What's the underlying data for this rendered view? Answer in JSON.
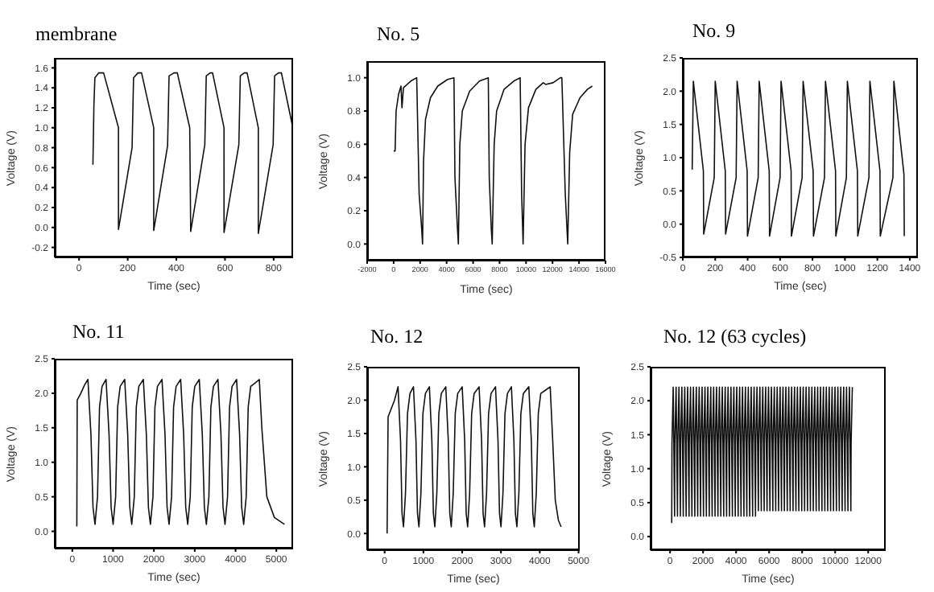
{
  "chart_data": [
    {
      "type": "line",
      "title": "membrane",
      "xlabel": "Time (sec)",
      "ylabel": "Voltage (V)",
      "xlim": [
        -100,
        880
      ],
      "ylim": [
        -0.3,
        1.7
      ],
      "xticks": [
        0,
        200,
        400,
        600,
        800
      ],
      "yticks": [
        -0.2,
        {
          "value": 0,
          "label": "0.0"
        },
        0.2,
        0.4,
        0.6,
        0.8,
        {
          "value": 1,
          "label": "1.0"
        },
        1.2,
        1.4,
        1.6
      ],
      "series": [
        {
          "color": "#111111",
          "x": [
            57,
            61,
            65,
            81,
            101,
            162,
            162,
            218,
            224,
            242,
            257,
            307,
            307,
            364,
            370,
            390,
            404,
            455,
            459,
            517,
            523,
            539,
            549,
            596,
            596,
            657,
            663,
            679,
            691,
            737,
            737,
            798,
            804,
            820,
            832,
            879
          ],
          "values": [
            0.63,
            1.22,
            1.5,
            1.55,
            1.55,
            1.0,
            -0.02,
            0.8,
            1.5,
            1.55,
            1.55,
            1.0,
            -0.03,
            0.82,
            1.52,
            1.55,
            1.55,
            1.0,
            -0.04,
            0.83,
            1.52,
            1.55,
            1.55,
            1.0,
            -0.05,
            0.83,
            1.52,
            1.55,
            1.55,
            1.0,
            -0.06,
            0.83,
            1.52,
            1.55,
            1.55,
            1.0
          ]
        }
      ]
    },
    {
      "type": "line",
      "title": "No. 5",
      "xlabel": "Time (sec)",
      "ylabel": "Voltage (V)",
      "xlim": [
        -2000,
        16000
      ],
      "ylim": [
        -0.1,
        1.1
      ],
      "xticks": [
        -2000,
        0,
        2000,
        4000,
        6000,
        8000,
        10000,
        12000,
        14000,
        16000
      ],
      "yticks": [
        {
          "value": 0,
          "label": "0.0"
        },
        0.2,
        0.4,
        0.6,
        0.8,
        {
          "value": 1,
          "label": "1.0"
        }
      ],
      "series": [
        {
          "color": "#111111",
          "x": [
            0,
            111,
            185,
            370,
            556,
            630,
            741,
            1296,
            1741,
            1926,
            2111,
            2185,
            2259,
            2407,
            2778,
            3333,
            4074,
            4556,
            4630,
            4815,
            4889,
            5000,
            5185,
            5741,
            6481,
            7148,
            7222,
            7370,
            7444,
            7593,
            7778,
            8333,
            9074,
            9556,
            9667,
            9778,
            9926,
            10185,
            10741,
            11296,
            11481,
            12037,
            12593,
            12704,
            12963,
            13148,
            13296,
            13519,
            14074,
            14630,
            15000
          ],
          "values": [
            0.56,
            0.56,
            0.8,
            0.9,
            0.95,
            0.82,
            0.94,
            0.98,
            1.0,
            0.3,
            0.1,
            0.0,
            0.5,
            0.75,
            0.88,
            0.95,
            0.99,
            1.0,
            0.4,
            0.1,
            0.0,
            0.6,
            0.8,
            0.92,
            0.98,
            1.0,
            0.4,
            0.1,
            0.0,
            0.6,
            0.8,
            0.93,
            0.98,
            1.0,
            0.3,
            0.0,
            0.6,
            0.82,
            0.93,
            0.97,
            0.96,
            0.97,
            1.0,
            1.0,
            0.3,
            0.0,
            0.55,
            0.78,
            0.88,
            0.93,
            0.95
          ]
        }
      ]
    },
    {
      "type": "line",
      "title": "No. 9",
      "xlabel": "Time (sec)",
      "ylabel": "Voltage (V)",
      "xlim": [
        0,
        1450
      ],
      "ylim": [
        -0.5,
        2.5
      ],
      "xticks": [
        0,
        200,
        400,
        600,
        800,
        1000,
        1200,
        1400
      ],
      "yticks": [
        -0.5,
        {
          "value": 0,
          "label": "0.0"
        },
        0.5,
        {
          "value": 1,
          "label": "1.0"
        },
        1.5,
        {
          "value": 2,
          "label": "2.0"
        },
        2.5
      ],
      "series": [
        {
          "color": "#111111",
          "x": [
            58,
            65,
            127,
            129,
            194,
            200,
            262,
            264,
            329,
            335,
            397,
            399,
            465,
            471,
            533,
            535,
            600,
            606,
            668,
            670,
            736,
            742,
            804,
            806,
            874,
            880,
            942,
            944,
            1009,
            1015,
            1077,
            1079,
            1148,
            1154,
            1216,
            1218,
            1296,
            1302,
            1364,
            1366
          ],
          "values": [
            0.82,
            2.15,
            0.8,
            -0.15,
            0.7,
            2.15,
            0.8,
            -0.15,
            0.7,
            2.15,
            0.8,
            -0.18,
            0.7,
            2.15,
            0.8,
            -0.18,
            0.7,
            2.15,
            0.8,
            -0.18,
            0.7,
            2.15,
            0.8,
            -0.18,
            0.7,
            2.15,
            0.8,
            -0.18,
            0.7,
            2.15,
            0.8,
            -0.18,
            0.7,
            2.15,
            0.8,
            -0.18,
            0.7,
            2.15,
            0.75,
            -0.18
          ]
        }
      ]
    },
    {
      "type": "line",
      "title": "No. 11",
      "xlabel": "Time (sec)",
      "ylabel": "Voltage (V)",
      "xlim": [
        -430,
        5410
      ],
      "ylim": [
        -0.25,
        2.5
      ],
      "xticks": [
        0,
        1000,
        2000,
        3000,
        4000,
        5000
      ],
      "yticks": [
        {
          "value": 0,
          "label": "0.0"
        },
        0.5,
        {
          "value": 1,
          "label": "1.0"
        },
        1.5,
        {
          "value": 2,
          "label": "2.0"
        },
        2.5
      ],
      "series": [
        {
          "color": "#111111",
          "x": [
            111,
            120,
            210,
            300,
            383,
            457,
            507,
            556,
            618,
            667,
            729,
            827,
            901,
            951,
            1000,
            1062,
            1111,
            1173,
            1284,
            1358,
            1408,
            1457,
            1519,
            1568,
            1630,
            1741,
            1815,
            1865,
            1914,
            1976,
            2025,
            2087,
            2198,
            2272,
            2322,
            2371,
            2433,
            2482,
            2544,
            2655,
            2729,
            2779,
            2828,
            2890,
            2939,
            3001,
            3112,
            3186,
            3236,
            3285,
            3347,
            3396,
            3458,
            3569,
            3643,
            3693,
            3742,
            3804,
            3853,
            3915,
            4026,
            4100,
            4150,
            4199,
            4261,
            4310,
            4372,
            4480,
            4582,
            4644,
            4767,
            4952,
            5199
          ],
          "values": [
            0.07,
            1.9,
            2.0,
            2.12,
            2.2,
            1.4,
            0.35,
            0.1,
            0.5,
            1.8,
            2.1,
            2.2,
            1.4,
            0.35,
            0.1,
            0.5,
            1.8,
            2.1,
            2.2,
            1.4,
            0.35,
            0.1,
            0.5,
            1.8,
            2.1,
            2.2,
            1.4,
            0.35,
            0.1,
            0.5,
            1.8,
            2.1,
            2.2,
            1.4,
            0.35,
            0.1,
            0.5,
            1.8,
            2.1,
            2.2,
            1.4,
            0.35,
            0.1,
            0.5,
            1.8,
            2.1,
            2.2,
            1.4,
            0.35,
            0.1,
            0.5,
            1.8,
            2.1,
            2.2,
            1.4,
            0.35,
            0.1,
            0.5,
            1.8,
            2.1,
            2.2,
            1.4,
            0.35,
            0.1,
            0.5,
            1.8,
            2.1,
            2.15,
            2.2,
            1.5,
            0.5,
            0.2,
            0.1
          ]
        }
      ]
    },
    {
      "type": "line",
      "title": "No. 12",
      "xlabel": "Time (sec)",
      "ylabel": "Voltage (V)",
      "xlim": [
        -450,
        5030
      ],
      "ylim": [
        -0.25,
        2.5
      ],
      "xticks": [
        0,
        1000,
        2000,
        3000,
        4000,
        5000
      ],
      "yticks": [
        {
          "value": 0,
          "label": "0.0"
        },
        0.5,
        {
          "value": 1,
          "label": "1.0"
        },
        1.5,
        {
          "value": 2,
          "label": "2.0"
        },
        2.5
      ],
      "series": [
        {
          "color": "#111111",
          "x": [
            64,
            90,
            256,
            346,
            410,
            449,
            487,
            538,
            590,
            654,
            744,
            808,
            847,
            885,
            936,
            988,
            1052,
            1154,
            1218,
            1257,
            1295,
            1346,
            1398,
            1462,
            1577,
            1641,
            1680,
            1718,
            1769,
            1821,
            1885,
            2000,
            2064,
            2103,
            2141,
            2192,
            2244,
            2308,
            2436,
            2500,
            2539,
            2577,
            2628,
            2680,
            2744,
            2859,
            2923,
            2962,
            3000,
            3051,
            3103,
            3167,
            3269,
            3333,
            3372,
            3410,
            3461,
            3513,
            3577,
            3718,
            3782,
            3821,
            3859,
            3910,
            3962,
            4026,
            4150,
            4269,
            4333,
            4400,
            4480,
            4551
          ],
          "values": [
            0.0,
            1.75,
            2.0,
            2.2,
            1.4,
            0.3,
            0.1,
            0.6,
            1.8,
            2.1,
            2.2,
            1.4,
            0.3,
            0.1,
            0.6,
            1.8,
            2.1,
            2.2,
            1.4,
            0.3,
            0.1,
            0.6,
            1.8,
            2.1,
            2.2,
            1.4,
            0.3,
            0.1,
            0.6,
            1.8,
            2.1,
            2.2,
            1.4,
            0.3,
            0.1,
            0.6,
            1.8,
            2.1,
            2.2,
            1.4,
            0.3,
            0.1,
            0.6,
            1.8,
            2.1,
            2.2,
            1.4,
            0.3,
            0.1,
            0.6,
            1.8,
            2.1,
            2.2,
            1.4,
            0.3,
            0.1,
            0.6,
            1.8,
            2.1,
            2.2,
            1.4,
            0.3,
            0.1,
            0.6,
            1.8,
            2.1,
            2.15,
            2.2,
            1.4,
            0.5,
            0.2,
            0.1
          ]
        }
      ]
    },
    {
      "type": "line",
      "title": "No. 12 (63 cycles)",
      "xlabel": "Time (sec)",
      "ylabel": "Voltage (V)",
      "xlim": [
        -1180,
        13060
      ],
      "ylim": [
        -0.2,
        2.5
      ],
      "xticks": [
        0,
        2000,
        4000,
        6000,
        8000,
        10000,
        12000
      ],
      "yticks": [
        {
          "value": 0,
          "label": "0.0"
        },
        0.5,
        {
          "value": 1,
          "label": "1.0"
        },
        1.5,
        {
          "value": 2,
          "label": "2.0"
        },
        2.5
      ],
      "series": [
        {
          "color": "#111111",
          "x": [
            100,
            115,
            190,
            275,
            290,
            365,
            450,
            465,
            540,
            625,
            640,
            715,
            800,
            815,
            890,
            975,
            990,
            1065,
            1150,
            1165,
            1240,
            1325,
            1340,
            1415,
            1500,
            1515,
            1590,
            1675,
            1690,
            1765,
            1850,
            1865,
            1940,
            2025,
            2040,
            2115,
            2200,
            2215,
            2290,
            2375,
            2390,
            2465,
            2550,
            2565,
            2640,
            2725,
            2740,
            2815,
            2900,
            2915,
            2990,
            3075,
            3090,
            3165,
            3250,
            3265,
            3340,
            3425,
            3440,
            3515,
            3600,
            3615,
            3690,
            3775,
            3790,
            3865,
            3950,
            3965,
            4040,
            4125,
            4140,
            4215,
            4300,
            4315,
            4390,
            4475,
            4490,
            4565,
            4650,
            4665,
            4740,
            4825,
            4840,
            4915,
            5000,
            5015,
            5090,
            5175,
            5190,
            5265,
            5350,
            5365,
            5440,
            5525,
            5540,
            5615,
            5700,
            5715,
            5790,
            5875,
            5890,
            5965,
            6050,
            6065,
            6140,
            6225,
            6240,
            6315,
            6400,
            6415,
            6490,
            6575,
            6590,
            6665,
            6750,
            6765,
            6840,
            6925,
            6940,
            7015,
            7100,
            7115,
            7190,
            7275,
            7290,
            7365,
            7450,
            7465,
            7540,
            7625,
            7640,
            7715,
            7800,
            7815,
            7890,
            7975,
            7990,
            8065,
            8150,
            8165,
            8240,
            8325,
            8340,
            8415,
            8500,
            8515,
            8590,
            8675,
            8690,
            8765,
            8850,
            8865,
            8940,
            9025,
            9040,
            9115,
            9200,
            9215,
            9290,
            9375,
            9390,
            9465,
            9550,
            9565,
            9640,
            9725,
            9740,
            9815,
            9900,
            9915,
            9990,
            10075,
            10090,
            10165,
            10250,
            10265,
            10340,
            10425,
            10440,
            10515,
            10600,
            10615,
            10690,
            10775,
            10790,
            10865,
            10950,
            10965,
            11040
          ],
          "values": [
            0.2,
            1.37,
            2.2,
            0.3,
            1.37,
            2.2,
            0.3,
            1.37,
            2.2,
            0.3,
            1.37,
            2.2,
            0.3,
            1.37,
            2.2,
            0.3,
            1.37,
            2.2,
            0.3,
            1.37,
            2.2,
            0.3,
            1.37,
            2.2,
            0.3,
            1.37,
            2.2,
            0.3,
            1.37,
            2.2,
            0.3,
            1.37,
            2.2,
            0.3,
            1.37,
            2.2,
            0.3,
            1.37,
            2.2,
            0.3,
            1.37,
            2.2,
            0.3,
            1.37,
            2.2,
            0.3,
            1.37,
            2.2,
            0.3,
            1.37,
            2.2,
            0.3,
            1.37,
            2.2,
            0.3,
            1.37,
            2.2,
            0.3,
            1.37,
            2.2,
            0.3,
            1.37,
            2.2,
            0.3,
            1.37,
            2.2,
            0.3,
            1.37,
            2.2,
            0.3,
            1.37,
            2.2,
            0.3,
            1.37,
            2.2,
            0.3,
            1.37,
            2.2,
            0.3,
            1.37,
            2.2,
            0.3,
            1.37,
            2.2,
            0.3,
            1.37,
            2.2,
            0.3,
            1.37,
            2.2,
            0.38,
            1.37,
            2.2,
            0.38,
            1.37,
            2.2,
            0.38,
            1.37,
            2.2,
            0.38,
            1.37,
            2.2,
            0.38,
            1.37,
            2.2,
            0.38,
            1.37,
            2.2,
            0.38,
            1.37,
            2.2,
            0.38,
            1.37,
            2.2,
            0.38,
            1.37,
            2.2,
            0.38,
            1.37,
            2.2,
            0.38,
            1.37,
            2.2,
            0.38,
            1.37,
            2.2,
            0.38,
            1.37,
            2.2,
            0.38,
            1.37,
            2.2,
            0.38,
            1.37,
            2.2,
            0.38,
            1.37,
            2.2,
            0.38,
            1.37,
            2.2,
            0.38,
            1.37,
            2.2,
            0.38,
            1.37,
            2.2,
            0.38,
            1.37,
            2.2,
            0.38,
            1.37,
            2.2,
            0.38,
            1.37,
            2.2,
            0.38,
            1.37,
            2.2,
            0.38,
            1.37,
            2.2,
            0.38,
            1.37,
            2.2,
            0.38,
            1.37,
            2.2,
            0.38,
            1.37,
            2.2,
            0.38,
            1.37,
            2.2,
            0.38,
            1.37,
            2.2,
            0.38,
            1.37,
            2.2,
            0.38,
            1.37,
            2.2,
            0.38,
            1.37,
            2.2,
            0.38,
            1.37,
            2.2
          ]
        }
      ]
    }
  ]
}
